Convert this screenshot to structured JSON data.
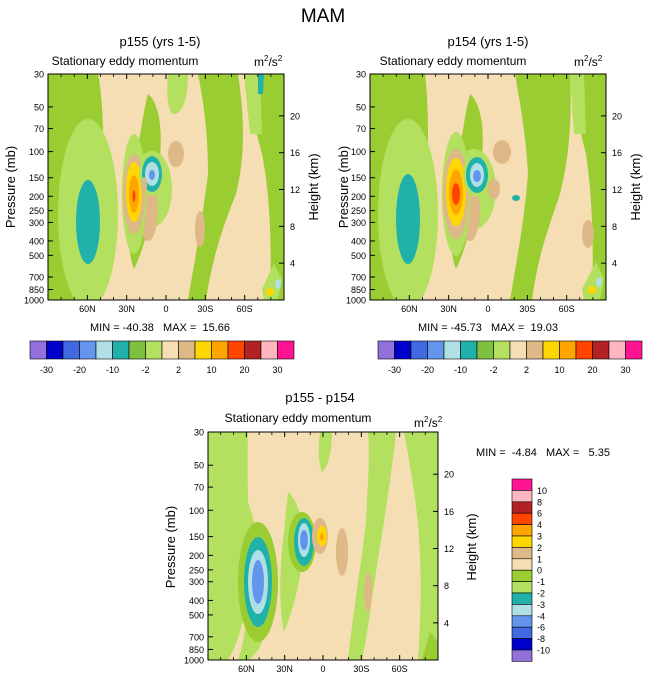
{
  "figure_title": "MAM",
  "chart_data": [
    {
      "type": "heatmap",
      "title": "p155 (yrs 1-5)",
      "subtitle": "Stationary eddy momentum",
      "units_base": "m",
      "units_sup1": "2",
      "units_mid": "/s",
      "units_sup2": "2",
      "ylabel": "Pressure (mb)",
      "y2label": "Height (km)",
      "xticks": [
        "60N",
        "30N",
        "0",
        "30S",
        "60S"
      ],
      "xtick_lat": [
        60,
        30,
        0,
        -30,
        -60
      ],
      "xlim": [
        90,
        -90
      ],
      "yticks": [
        "30",
        "50",
        "70",
        "100",
        "150",
        "200",
        "250",
        "300",
        "400",
        "500",
        "700",
        "850",
        "1000"
      ],
      "ylim": [
        30,
        1000
      ],
      "y2ticks": [
        "20",
        "16",
        "12",
        "8",
        "4"
      ],
      "stats": "MIN = -40.38   MAX =  15.66",
      "colorbar_labels": [
        "-30",
        "-20",
        "-10",
        "-2",
        "2",
        "10",
        "20",
        "30"
      ]
    },
    {
      "type": "heatmap",
      "title": "p154 (yrs 1-5)",
      "subtitle": "Stationary eddy momentum",
      "units_base": "m",
      "units_sup1": "2",
      "units_mid": "/s",
      "units_sup2": "2",
      "ylabel": "Pressure (mb)",
      "y2label": "Height (km)",
      "xticks": [
        "60N",
        "30N",
        "0",
        "30S",
        "60S"
      ],
      "xtick_lat": [
        60,
        30,
        0,
        -30,
        -60
      ],
      "xlim": [
        90,
        -90
      ],
      "yticks": [
        "30",
        "50",
        "70",
        "100",
        "150",
        "200",
        "250",
        "300",
        "400",
        "500",
        "700",
        "850",
        "1000"
      ],
      "ylim": [
        30,
        1000
      ],
      "y2ticks": [
        "20",
        "16",
        "12",
        "8",
        "4"
      ],
      "stats": "MIN = -45.73   MAX =  19.03",
      "colorbar_labels": [
        "-30",
        "-20",
        "-10",
        "-2",
        "2",
        "10",
        "20",
        "30"
      ]
    },
    {
      "type": "heatmap",
      "title": "p155 - p154",
      "subtitle": "Stationary eddy momentum",
      "units_base": "m",
      "units_sup1": "2",
      "units_mid": "/s",
      "units_sup2": "2",
      "ylabel": "Pressure (mb)",
      "y2label": "Height (km)",
      "xticks": [
        "60N",
        "30N",
        "0",
        "30S",
        "60S"
      ],
      "xtick_lat": [
        60,
        30,
        0,
        -30,
        -60
      ],
      "xlim": [
        90,
        -90
      ],
      "yticks": [
        "30",
        "50",
        "70",
        "100",
        "150",
        "200",
        "250",
        "300",
        "400",
        "500",
        "700",
        "850",
        "1000"
      ],
      "ylim": [
        30,
        1000
      ],
      "y2ticks": [
        "20",
        "16",
        "12",
        "8",
        "4"
      ],
      "stats": "MIN =  -4.84   MAX =   5.35",
      "colorbar_labels": [
        "10",
        "8",
        "6",
        "4",
        "3",
        "2",
        "1",
        "0",
        "-1",
        "-2",
        "-3",
        "-4",
        "-6",
        "-8",
        "-10"
      ]
    }
  ],
  "colors": {
    "top_palette": [
      "#9370db",
      "#0000cd",
      "#4169e1",
      "#6495ed",
      "#b0e0e6",
      "#20b2aa",
      "#7fbf3f",
      "#b3e05e",
      "#f5deb3",
      "#deb887",
      "#ffd700",
      "#ffa500",
      "#ff4500",
      "#b22222",
      "#ffb6c1",
      "#ff1493"
    ],
    "diff_palette": [
      "#ff1493",
      "#ffb6c1",
      "#b22222",
      "#ff4500",
      "#ffa500",
      "#ffd700",
      "#deb887",
      "#f5deb3",
      "#9acd32",
      "#b3e05e",
      "#20b2aa",
      "#b0e0e6",
      "#6495ed",
      "#4169e1",
      "#0000cd",
      "#9370db"
    ],
    "neutral": "#f5deb3",
    "light_green": "#b3e05e",
    "green": "#9acd32",
    "teal": "#20b2aa",
    "tan": "#deb887"
  }
}
